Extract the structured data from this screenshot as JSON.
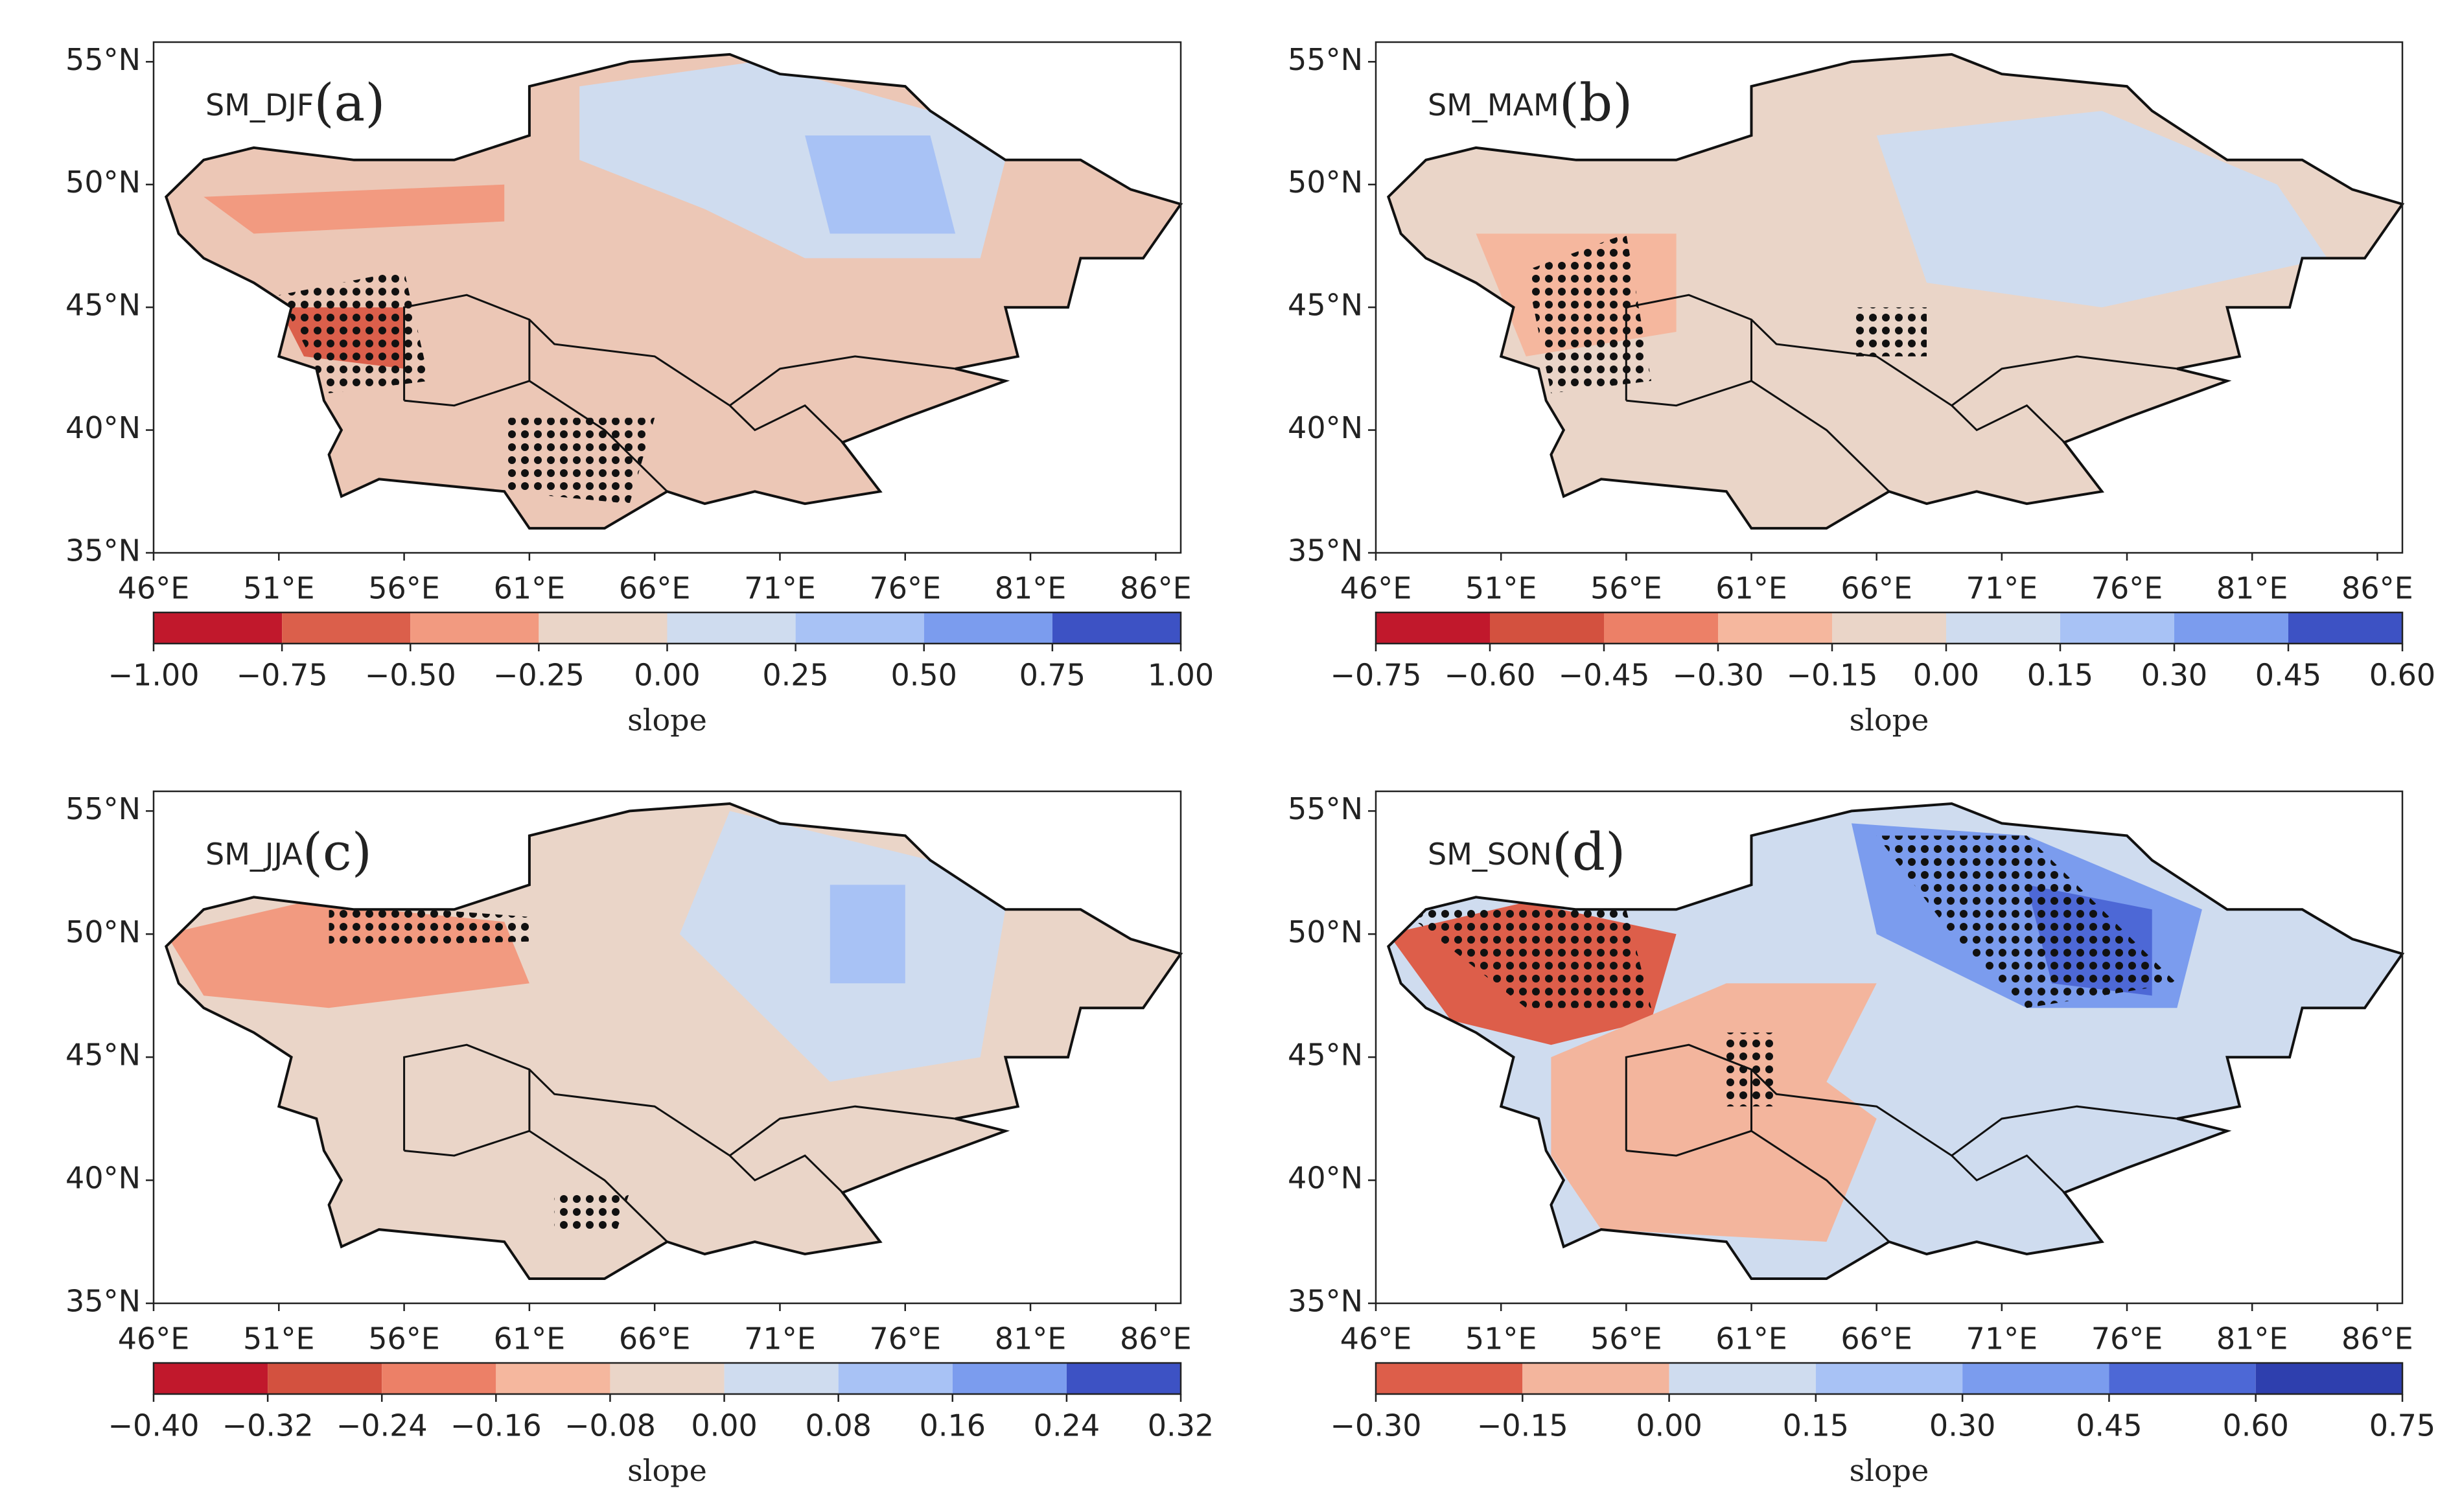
{
  "chart_data": [
    {
      "type": "map",
      "title": "SM_DJF",
      "label": "(a)",
      "xlim": [
        46,
        87
      ],
      "ylim": [
        35,
        55.8
      ],
      "xticks": [
        {
          "value": 46,
          "label": "46°E"
        },
        {
          "value": 51,
          "label": "51°E"
        },
        {
          "value": 56,
          "label": "56°E"
        },
        {
          "value": 61,
          "label": "61°E"
        },
        {
          "value": 66,
          "label": "66°E"
        },
        {
          "value": 71,
          "label": "71°E"
        },
        {
          "value": 76,
          "label": "76°E"
        },
        {
          "value": 81,
          "label": "81°E"
        },
        {
          "value": 86,
          "label": "86°E"
        }
      ],
      "yticks": [
        {
          "value": 35,
          "label": "35°N"
        },
        {
          "value": 40,
          "label": "40°N"
        },
        {
          "value": 45,
          "label": "45°N"
        },
        {
          "value": 50,
          "label": "50°N"
        },
        {
          "value": 55,
          "label": "55°N"
        }
      ],
      "colorbar": {
        "label": "slope",
        "clim": [
          -1,
          1
        ],
        "ticks": [
          {
            "value": -1,
            "label": "−1.00"
          },
          {
            "value": -0.75,
            "label": "−0.75"
          },
          {
            "value": -0.5,
            "label": "−0.50"
          },
          {
            "value": -0.25,
            "label": "−0.25"
          },
          {
            "value": 0,
            "label": "0.00"
          },
          {
            "value": 0.25,
            "label": "0.25"
          },
          {
            "value": 0.5,
            "label": "0.50"
          },
          {
            "value": 0.75,
            "label": "0.75"
          },
          {
            "value": 1,
            "label": "1.00"
          }
        ],
        "colors": [
          "#c1182c",
          "#db5f4b",
          "#f29a80",
          "#ead5c8",
          "#cfdcef",
          "#a8c2f5",
          "#7b9cee",
          "#3d52c4"
        ]
      }
    },
    {
      "type": "map",
      "title": "SM_MAM",
      "label": "(b)",
      "xlim": [
        46,
        87
      ],
      "ylim": [
        35,
        55.8
      ],
      "xticks": [
        {
          "value": 46,
          "label": "46°E"
        },
        {
          "value": 51,
          "label": "51°E"
        },
        {
          "value": 56,
          "label": "56°E"
        },
        {
          "value": 61,
          "label": "61°E"
        },
        {
          "value": 66,
          "label": "66°E"
        },
        {
          "value": 71,
          "label": "71°E"
        },
        {
          "value": 76,
          "label": "76°E"
        },
        {
          "value": 81,
          "label": "81°E"
        },
        {
          "value": 86,
          "label": "86°E"
        }
      ],
      "yticks": [
        {
          "value": 35,
          "label": "35°N"
        },
        {
          "value": 40,
          "label": "40°N"
        },
        {
          "value": 45,
          "label": "45°N"
        },
        {
          "value": 50,
          "label": "50°N"
        },
        {
          "value": 55,
          "label": "55°N"
        }
      ],
      "colorbar": {
        "label": "slope",
        "clim": [
          -0.75,
          0.6
        ],
        "ticks": [
          {
            "value": -0.75,
            "label": "−0.75"
          },
          {
            "value": -0.6,
            "label": "−0.60"
          },
          {
            "value": -0.45,
            "label": "−0.45"
          },
          {
            "value": -0.3,
            "label": "−0.30"
          },
          {
            "value": -0.15,
            "label": "−0.15"
          },
          {
            "value": 0,
            "label": "0.00"
          },
          {
            "value": 0.15,
            "label": "0.15"
          },
          {
            "value": 0.3,
            "label": "0.30"
          },
          {
            "value": 0.45,
            "label": "0.45"
          },
          {
            "value": 0.6,
            "label": "0.60"
          }
        ],
        "colors": [
          "#c1182c",
          "#d3513f",
          "#ec8067",
          "#f5b79e",
          "#ead5c8",
          "#cfdcef",
          "#a8c2f5",
          "#7b9cee",
          "#3d52c4"
        ]
      }
    },
    {
      "type": "map",
      "title": "SM_JJA",
      "label": "(c)",
      "xlim": [
        46,
        87
      ],
      "ylim": [
        35,
        55.8
      ],
      "xticks": [
        {
          "value": 46,
          "label": "46°E"
        },
        {
          "value": 51,
          "label": "51°E"
        },
        {
          "value": 56,
          "label": "56°E"
        },
        {
          "value": 61,
          "label": "61°E"
        },
        {
          "value": 66,
          "label": "66°E"
        },
        {
          "value": 71,
          "label": "71°E"
        },
        {
          "value": 76,
          "label": "76°E"
        },
        {
          "value": 81,
          "label": "81°E"
        },
        {
          "value": 86,
          "label": "86°E"
        }
      ],
      "yticks": [
        {
          "value": 35,
          "label": "35°N"
        },
        {
          "value": 40,
          "label": "40°N"
        },
        {
          "value": 45,
          "label": "45°N"
        },
        {
          "value": 50,
          "label": "50°N"
        },
        {
          "value": 55,
          "label": "55°N"
        }
      ],
      "colorbar": {
        "label": "slope",
        "clim": [
          -0.4,
          0.32
        ],
        "ticks": [
          {
            "value": -0.4,
            "label": "−0.40"
          },
          {
            "value": -0.32,
            "label": "−0.32"
          },
          {
            "value": -0.24,
            "label": "−0.24"
          },
          {
            "value": -0.16,
            "label": "−0.16"
          },
          {
            "value": -0.08,
            "label": "−0.08"
          },
          {
            "value": 0,
            "label": "0.00"
          },
          {
            "value": 0.08,
            "label": "0.08"
          },
          {
            "value": 0.16,
            "label": "0.16"
          },
          {
            "value": 0.24,
            "label": "0.24"
          },
          {
            "value": 0.32,
            "label": "0.32"
          }
        ],
        "colors": [
          "#c1182c",
          "#d3513f",
          "#ec8067",
          "#f5b79e",
          "#ead5c8",
          "#cfdcef",
          "#a8c2f5",
          "#7b9cee",
          "#3d52c4"
        ]
      }
    },
    {
      "type": "map",
      "title": "SM_SON",
      "label": "(d)",
      "xlim": [
        46,
        87
      ],
      "ylim": [
        35,
        55.8
      ],
      "xticks": [
        {
          "value": 46,
          "label": "46°E"
        },
        {
          "value": 51,
          "label": "51°E"
        },
        {
          "value": 56,
          "label": "56°E"
        },
        {
          "value": 61,
          "label": "61°E"
        },
        {
          "value": 66,
          "label": "66°E"
        },
        {
          "value": 71,
          "label": "71°E"
        },
        {
          "value": 76,
          "label": "76°E"
        },
        {
          "value": 81,
          "label": "81°E"
        },
        {
          "value": 86,
          "label": "86°E"
        }
      ],
      "yticks": [
        {
          "value": 35,
          "label": "35°N"
        },
        {
          "value": 40,
          "label": "40°N"
        },
        {
          "value": 45,
          "label": "45°N"
        },
        {
          "value": 50,
          "label": "50°N"
        },
        {
          "value": 55,
          "label": "55°N"
        }
      ],
      "colorbar": {
        "label": "slope",
        "clim": [
          -0.3,
          0.75
        ],
        "ticks": [
          {
            "value": -0.3,
            "label": "−0.30"
          },
          {
            "value": -0.15,
            "label": "−0.15"
          },
          {
            "value": 0,
            "label": "0.00"
          },
          {
            "value": 0.15,
            "label": "0.15"
          },
          {
            "value": 0.3,
            "label": "0.30"
          },
          {
            "value": 0.45,
            "label": "0.45"
          },
          {
            "value": 0.6,
            "label": "0.60"
          },
          {
            "value": 0.75,
            "label": "0.75"
          }
        ],
        "colors": [
          "#dd5e4a",
          "#f3b59d",
          "#cfdcef",
          "#a8c2f5",
          "#7b9cee",
          "#4d68d6",
          "#2e3fae"
        ]
      }
    }
  ]
}
